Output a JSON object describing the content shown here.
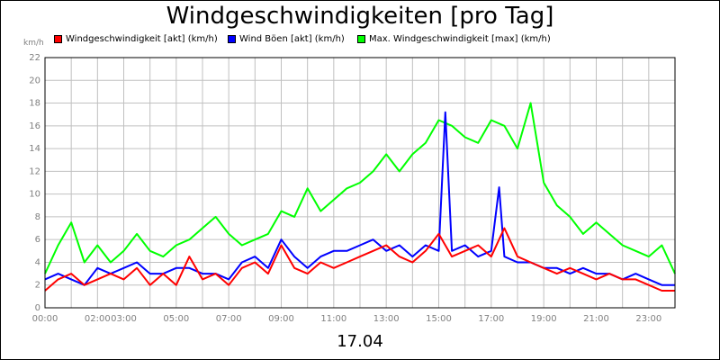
{
  "chart_data": {
    "type": "line",
    "title": "Windgeschwindigkeiten [pro Tag]",
    "unit_label": "km/h",
    "date_label": "17.04",
    "ylim": [
      0,
      22
    ],
    "y_ticks": [
      0,
      2,
      4,
      6,
      8,
      10,
      12,
      14,
      16,
      18,
      20,
      22
    ],
    "x_range_hours": [
      0,
      24
    ],
    "x_tick_labels": [
      {
        "label": "00:00",
        "hour": 0
      },
      {
        "label": "02:00",
        "hour": 2
      },
      {
        "label": "03:00",
        "hour": 3
      },
      {
        "label": "05:00",
        "hour": 5
      },
      {
        "label": "07:00",
        "hour": 7
      },
      {
        "label": "09:00",
        "hour": 9
      },
      {
        "label": "11:00",
        "hour": 11
      },
      {
        "label": "13:00",
        "hour": 13
      },
      {
        "label": "15:00",
        "hour": 15
      },
      {
        "label": "17:00",
        "hour": 17
      },
      {
        "label": "19:00",
        "hour": 19
      },
      {
        "label": "21:00",
        "hour": 21
      },
      {
        "label": "23:00",
        "hour": 23
      }
    ],
    "grid": true,
    "series": [
      {
        "name": "Windgeschwindigkeit [akt] (km/h)",
        "color": "#ff0000",
        "x": [
          0,
          0.5,
          1,
          1.5,
          2,
          2.5,
          3,
          3.5,
          4,
          4.5,
          5,
          5.5,
          6,
          6.5,
          7,
          7.5,
          8,
          8.5,
          9,
          9.5,
          10,
          10.5,
          11,
          11.5,
          12,
          12.5,
          13,
          13.5,
          14,
          14.5,
          15,
          15.5,
          16,
          16.5,
          17,
          17.5,
          18,
          18.5,
          19,
          19.5,
          20,
          20.5,
          21,
          21.5,
          22,
          22.5,
          23,
          23.5,
          24
        ],
        "values": [
          1.5,
          2.5,
          3.0,
          2.0,
          2.5,
          3.0,
          2.5,
          3.5,
          2.0,
          3.0,
          2.0,
          4.5,
          2.5,
          3.0,
          2.0,
          3.5,
          4.0,
          3.0,
          5.5,
          3.5,
          3.0,
          4.0,
          3.5,
          4.0,
          4.5,
          5.0,
          5.5,
          4.5,
          4.0,
          5.0,
          6.5,
          4.5,
          5.0,
          5.5,
          4.5,
          7.0,
          4.5,
          4.0,
          3.5,
          3.0,
          3.5,
          3.0,
          2.5,
          3.0,
          2.5,
          2.5,
          2.0,
          1.5,
          1.5
        ]
      },
      {
        "name": "Wind Böen [akt] (km/h)",
        "color": "#0000ff",
        "x": [
          0,
          0.5,
          1,
          1.5,
          2,
          2.5,
          3,
          3.5,
          4,
          4.5,
          5,
          5.5,
          6,
          6.5,
          7,
          7.5,
          8,
          8.5,
          9,
          9.5,
          10,
          10.5,
          11,
          11.5,
          12,
          12.5,
          13,
          13.5,
          14,
          14.5,
          15,
          15.25,
          15.5,
          16,
          16.5,
          17,
          17.3,
          17.5,
          18,
          18.5,
          19,
          19.5,
          20,
          20.5,
          21,
          21.5,
          22,
          22.5,
          23,
          23.5,
          24
        ],
        "values": [
          2.5,
          3.0,
          2.5,
          2.0,
          3.5,
          3.0,
          3.5,
          4.0,
          3.0,
          3.0,
          3.5,
          3.5,
          3.0,
          3.0,
          2.5,
          4.0,
          4.5,
          3.5,
          6.0,
          4.5,
          3.5,
          4.5,
          5.0,
          5.0,
          5.5,
          6.0,
          5.0,
          5.5,
          4.5,
          5.5,
          5.0,
          17.2,
          5.0,
          5.5,
          4.5,
          5.0,
          10.6,
          4.5,
          4.0,
          4.0,
          3.5,
          3.5,
          3.0,
          3.5,
          3.0,
          3.0,
          2.5,
          3.0,
          2.5,
          2.0,
          2.0
        ]
      },
      {
        "name": "Max. Windgeschwindigkeit [max] (km/h)",
        "color": "#00ff00",
        "x": [
          0,
          0.5,
          1,
          1.5,
          2,
          2.5,
          3,
          3.5,
          4,
          4.5,
          5,
          5.5,
          6,
          6.5,
          7,
          7.5,
          8,
          8.5,
          9,
          9.5,
          10,
          10.5,
          11,
          11.5,
          12,
          12.5,
          13,
          13.5,
          14,
          14.5,
          15,
          15.5,
          16,
          16.5,
          17,
          17.5,
          18,
          18.5,
          19,
          19.5,
          20,
          20.5,
          21,
          21.5,
          22,
          22.5,
          23,
          23.5,
          24
        ],
        "values": [
          3.0,
          5.5,
          7.5,
          4.0,
          5.5,
          4.0,
          5.0,
          6.5,
          5.0,
          4.5,
          5.5,
          6.0,
          7.0,
          8.0,
          6.5,
          5.5,
          6.0,
          6.5,
          8.5,
          8.0,
          10.5,
          8.5,
          9.5,
          10.5,
          11.0,
          12.0,
          13.5,
          12.0,
          13.5,
          14.5,
          16.5,
          16.0,
          15.0,
          14.5,
          16.5,
          16.0,
          14.0,
          18.0,
          11.0,
          9.0,
          8.0,
          6.5,
          7.5,
          6.5,
          5.5,
          5.0,
          4.5,
          5.5,
          3.0
        ]
      }
    ]
  }
}
